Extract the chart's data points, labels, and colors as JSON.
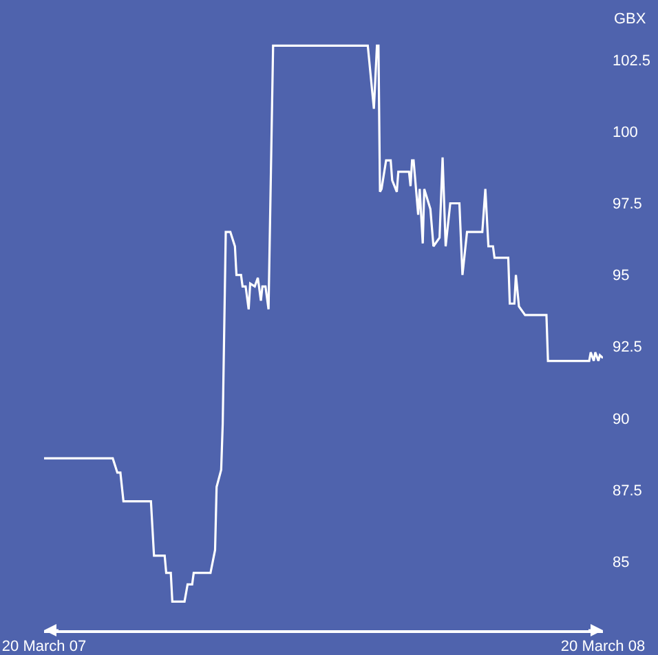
{
  "chart_data": {
    "type": "line",
    "ylabel": "GBX",
    "x": [
      "2007-03-20",
      "2007-05-04",
      "2007-05-07",
      "2007-05-09",
      "2007-05-11",
      "2007-05-29",
      "2007-05-31",
      "2007-06-07",
      "2007-06-08",
      "2007-06-11",
      "2007-06-12",
      "2007-06-20",
      "2007-06-22",
      "2007-06-25",
      "2007-06-26",
      "2007-07-07",
      "2007-07-10",
      "2007-07-11",
      "2007-07-14",
      "2007-07-15",
      "2007-07-17",
      "2007-07-20",
      "2007-07-23",
      "2007-07-24",
      "2007-07-27",
      "2007-07-28",
      "2007-07-30",
      "2007-08-01",
      "2007-08-02",
      "2007-08-05",
      "2007-08-07",
      "2007-08-09",
      "2007-08-10",
      "2007-08-12",
      "2007-08-14",
      "2007-08-17",
      "2007-10-18",
      "2007-10-22",
      "2007-10-24",
      "2007-10-25",
      "2007-10-26",
      "2007-10-27",
      "2007-10-30",
      "2007-11-02",
      "2007-11-03",
      "2007-11-06",
      "2007-11-07",
      "2007-11-14",
      "2007-11-15",
      "2007-11-16",
      "2007-11-17",
      "2007-11-20",
      "2007-11-21",
      "2007-11-23",
      "2007-11-24",
      "2007-11-28",
      "2007-11-30",
      "2007-12-04",
      "2007-12-06",
      "2007-12-08",
      "2007-12-11",
      "2007-12-17",
      "2007-12-19",
      "2007-12-22",
      "2008-01-01",
      "2008-01-03",
      "2008-01-05",
      "2008-01-08",
      "2008-01-09",
      "2008-01-18",
      "2008-01-19",
      "2008-01-22",
      "2008-01-23",
      "2008-01-25",
      "2008-01-29",
      "2008-02-12",
      "2008-02-13",
      "2008-03-11",
      "2008-03-12",
      "2008-03-14",
      "2008-03-15",
      "2008-03-17",
      "2008-03-18",
      "2008-03-20"
    ],
    "series": [
      {
        "color": "#ffffff",
        "values": [
          88.6,
          88.6,
          88.1,
          88.1,
          87.1,
          87.1,
          85.2,
          85.2,
          84.6,
          84.6,
          83.6,
          83.6,
          84.2,
          84.2,
          84.6,
          84.6,
          85.4,
          87.6,
          88.2,
          89.8,
          96.5,
          96.5,
          96.0,
          95.0,
          95.0,
          94.6,
          94.6,
          93.8,
          94.7,
          94.6,
          94.9,
          94.1,
          94.6,
          94.6,
          93.8,
          103.0,
          103.0,
          100.8,
          103.0,
          103.0,
          97.9,
          98.0,
          99.0,
          99.0,
          98.3,
          97.9,
          98.6,
          98.6,
          98.1,
          99.0,
          99.0,
          97.1,
          98.0,
          96.1,
          98.0,
          97.3,
          96.0,
          96.3,
          99.1,
          96.0,
          97.5,
          97.5,
          95.0,
          96.5,
          96.5,
          98.0,
          96.0,
          96.0,
          95.6,
          95.6,
          94.0,
          94.0,
          95.0,
          93.9,
          93.6,
          93.6,
          92.0,
          92.0,
          92.3,
          92.0,
          92.3,
          92.0,
          92.2,
          92.1
        ]
      }
    ],
    "xlim": [
      "2007-03-20",
      "2008-03-20"
    ],
    "xticks": [
      {
        "value": "2007-03-20",
        "label": "20 March 07"
      },
      {
        "value": "2008-03-20",
        "label": "20 March 08"
      }
    ],
    "ylim": [
      82.6,
      104.5
    ],
    "yticks": [
      85,
      87.5,
      90,
      92.5,
      95,
      97.5,
      100,
      102.5
    ],
    "grid": false,
    "marker": "none",
    "line_style": "solid"
  }
}
